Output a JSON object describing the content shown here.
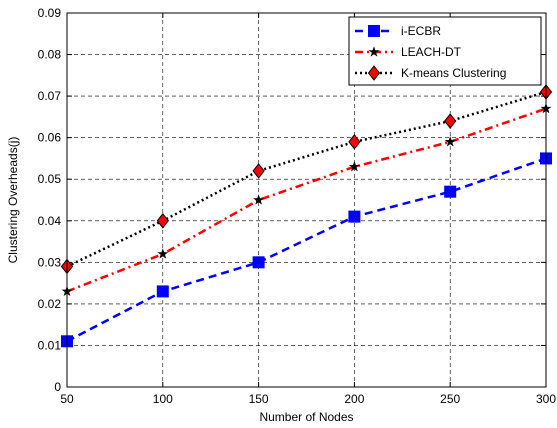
{
  "chart_data": {
    "type": "line",
    "xlabel": "Number of Nodes",
    "ylabel": "Clustering Overheads(j)",
    "x": [
      50,
      100,
      150,
      200,
      250,
      300
    ],
    "xlim": [
      50,
      300
    ],
    "ylim": [
      0,
      0.09
    ],
    "x_ticks": [
      "50",
      "100",
      "150",
      "200",
      "250",
      "300"
    ],
    "y_ticks": [
      "0",
      "0.01",
      "0.02",
      "0.03",
      "0.04",
      "0.05",
      "0.06",
      "0.07",
      "0.08",
      "0.09"
    ],
    "grid": true,
    "legend_position": "top-right",
    "series": [
      {
        "name": "i-ECBR",
        "values": [
          0.011,
          0.023,
          0.03,
          0.041,
          0.047,
          0.055
        ],
        "color": "#0000ff",
        "line_style": "dashed",
        "marker": "square"
      },
      {
        "name": "LEACH-DT",
        "values": [
          0.023,
          0.032,
          0.045,
          0.053,
          0.059,
          0.067
        ],
        "color": "#ff0000",
        "line_style": "dash-dot",
        "marker": "star"
      },
      {
        "name": "K-means Clustering",
        "values": [
          0.029,
          0.04,
          0.052,
          0.059,
          0.064,
          0.071
        ],
        "color": "#000000",
        "line_style": "dotted",
        "marker": "diamond"
      }
    ]
  }
}
